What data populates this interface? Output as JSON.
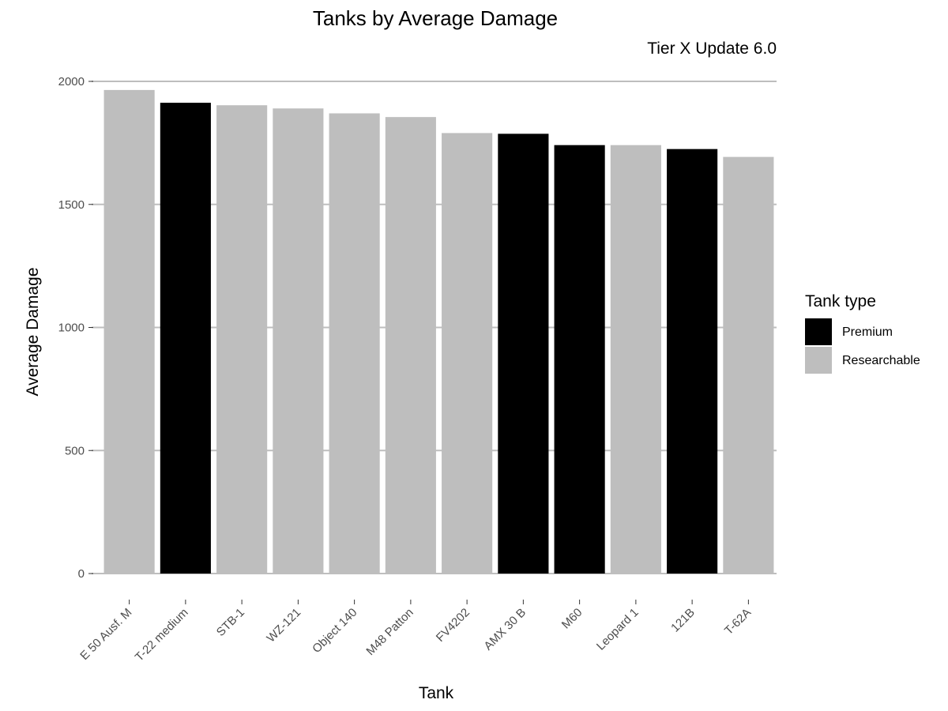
{
  "chart_data": {
    "type": "bar",
    "title": "Tanks by Average Damage",
    "subtitle": "Tier X Update 6.0",
    "xlabel": "Tank",
    "ylabel": "Average Damage",
    "ylim": [
      0,
      2000
    ],
    "yticks": [
      0,
      500,
      1000,
      1500,
      2000
    ],
    "grid": "horizontal major",
    "categories": [
      "E 50 Ausf. M",
      "T-22 medium",
      "STB-1",
      "WZ-121",
      "Object 140",
      "M48 Patton",
      "FV4202",
      "AMX 30 B",
      "M60",
      "Leopard 1",
      "121B",
      "T-62A"
    ],
    "values": [
      1965,
      1913,
      1903,
      1890,
      1870,
      1855,
      1790,
      1787,
      1741,
      1741,
      1725,
      1693
    ],
    "tank_type": [
      "Researchable",
      "Premium",
      "Researchable",
      "Researchable",
      "Researchable",
      "Researchable",
      "Researchable",
      "Premium",
      "Premium",
      "Researchable",
      "Premium",
      "Researchable"
    ],
    "legend": {
      "title": "Tank type",
      "position": "right",
      "entries": [
        {
          "label": "Premium",
          "color": "#000000"
        },
        {
          "label": "Researchable",
          "color": "#bebebe"
        }
      ]
    }
  }
}
